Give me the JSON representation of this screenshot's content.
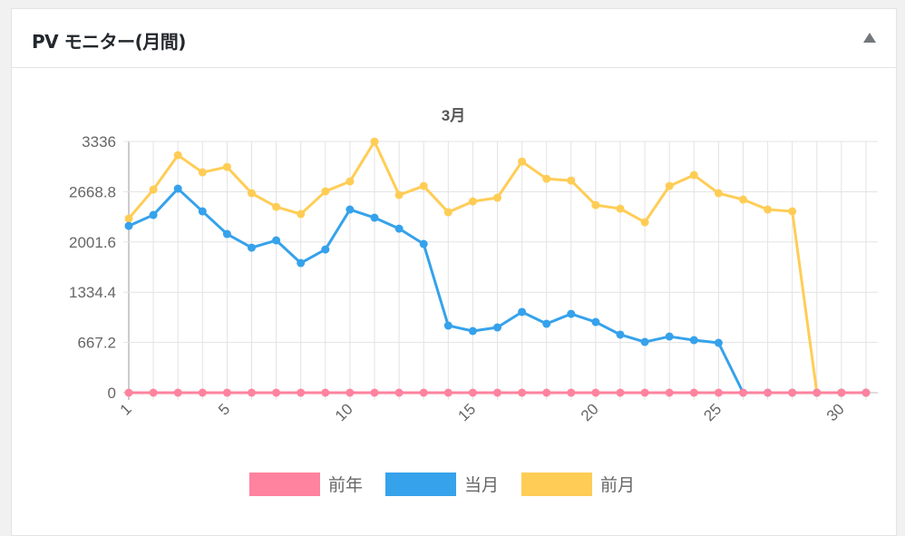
{
  "widget": {
    "title": "PV モニター(月間)",
    "toggle_icon": "triangle-up-icon"
  },
  "chart_data": {
    "type": "line",
    "title": "3月",
    "x": [
      1,
      2,
      3,
      4,
      5,
      6,
      7,
      8,
      9,
      10,
      11,
      12,
      13,
      14,
      15,
      16,
      17,
      18,
      19,
      20,
      21,
      22,
      23,
      24,
      25,
      26,
      27,
      28,
      29,
      30,
      31
    ],
    "x_tick_labels": [
      "1",
      "5",
      "10",
      "15",
      "20",
      "25",
      "30"
    ],
    "y_tick_labels": [
      "3336",
      "2668.8",
      "2001.6",
      "1334.4",
      "667.2",
      "0"
    ],
    "ylim": [
      0,
      3336
    ],
    "grid": true,
    "legend": "bottom",
    "series": [
      {
        "name": "前年",
        "color": "#ff829e",
        "values": [
          0,
          0,
          0,
          0,
          0,
          0,
          0,
          0,
          0,
          0,
          0,
          0,
          0,
          0,
          0,
          0,
          0,
          0,
          0,
          0,
          0,
          0,
          0,
          0,
          0,
          0,
          0,
          0,
          0,
          0,
          0
        ]
      },
      {
        "name": "当月",
        "color": "#36a2eb",
        "values": [
          2215,
          2360,
          2709,
          2408,
          2107,
          1926,
          2023,
          1722,
          1902,
          2432,
          2324,
          2179,
          1975,
          891,
          819,
          867,
          1072,
          915,
          1047,
          939,
          771,
          674,
          746,
          698,
          662,
          0,
          0,
          0,
          0,
          0,
          0
        ]
      },
      {
        "name": "前月",
        "color": "#ffcd56",
        "values": [
          2312,
          2697,
          3154,
          2926,
          2998,
          2649,
          2468,
          2372,
          2673,
          2805,
          3335,
          2625,
          2745,
          2396,
          2540,
          2589,
          3070,
          2841,
          2817,
          2492,
          2444,
          2264,
          2745,
          2890,
          2649,
          2565,
          2432,
          2408,
          0,
          0,
          0
        ]
      }
    ]
  }
}
